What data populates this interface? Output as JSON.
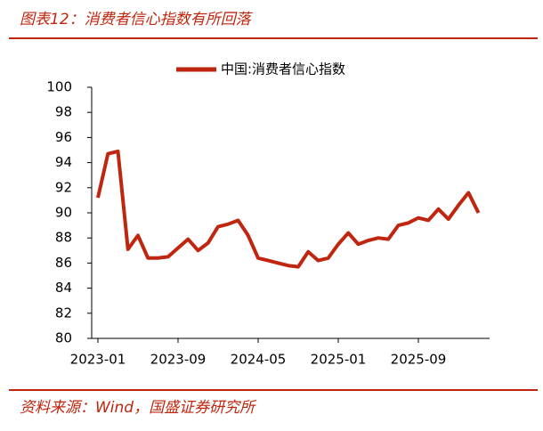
{
  "chart_data": {
    "type": "line",
    "title": "图表12：消费者信心指数有所回落",
    "source": "资料来源：Wind，国盛证券研究所",
    "categories": [
      "2023-01",
      null,
      null,
      null,
      null,
      null,
      null,
      null,
      "2023-09",
      null,
      null,
      null,
      null,
      null,
      null,
      null,
      "2024-05",
      null,
      null,
      null,
      null,
      null,
      null,
      null,
      "2025-01",
      null,
      null,
      null,
      null,
      null,
      null,
      null,
      "2025-09",
      null,
      null,
      null,
      null,
      null,
      null
    ],
    "series": [
      {
        "name": "中国:消费者信心指数",
        "color": "#c0260f",
        "values": [
          91.2,
          94.7,
          94.9,
          87.1,
          88.2,
          86.4,
          86.4,
          86.5,
          87.2,
          87.9,
          87.0,
          87.6,
          88.9,
          89.1,
          89.4,
          88.2,
          86.4,
          86.2,
          86.0,
          85.8,
          85.7,
          86.9,
          86.2,
          86.4,
          87.5,
          88.4,
          87.5,
          87.8,
          88.0,
          87.9,
          89.0,
          89.2,
          89.6,
          89.4,
          90.3,
          89.5,
          90.6,
          91.6,
          90.0
        ]
      }
    ],
    "ylim": [
      80,
      100
    ],
    "yticks": [
      80,
      82,
      84,
      86,
      88,
      90,
      92,
      94,
      96,
      98,
      100
    ],
    "grid": false,
    "legend": "top"
  }
}
